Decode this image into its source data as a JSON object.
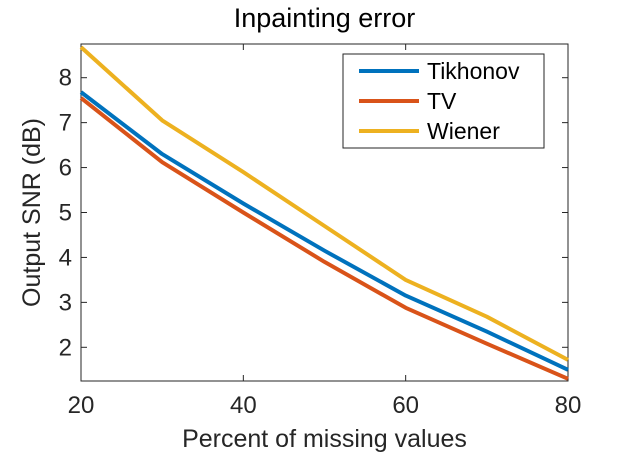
{
  "chart_data": {
    "type": "line",
    "title": "Inpainting error",
    "xlabel": "Percent of missing values",
    "ylabel": "Output SNR (dB)",
    "xlim": [
      20,
      80
    ],
    "ylim": [
      1.25,
      8.75
    ],
    "xticks": [
      20,
      40,
      60,
      80
    ],
    "yticks": [
      2,
      3,
      4,
      5,
      6,
      7,
      8
    ],
    "x": [
      20,
      30,
      40,
      50,
      60,
      70,
      80
    ],
    "series": [
      {
        "name": "Tikhonov",
        "color": "#0072BD",
        "values": [
          7.68,
          6.3,
          5.2,
          4.15,
          3.15,
          2.35,
          1.5
        ]
      },
      {
        "name": "TV",
        "color": "#D95319",
        "values": [
          7.55,
          6.12,
          5.0,
          3.9,
          2.88,
          2.08,
          1.3
        ]
      },
      {
        "name": "Wiener",
        "color": "#EDB120",
        "values": [
          8.68,
          7.05,
          5.9,
          4.7,
          3.5,
          2.68,
          1.72
        ]
      }
    ],
    "grid": false,
    "legend_position": "top-right"
  }
}
